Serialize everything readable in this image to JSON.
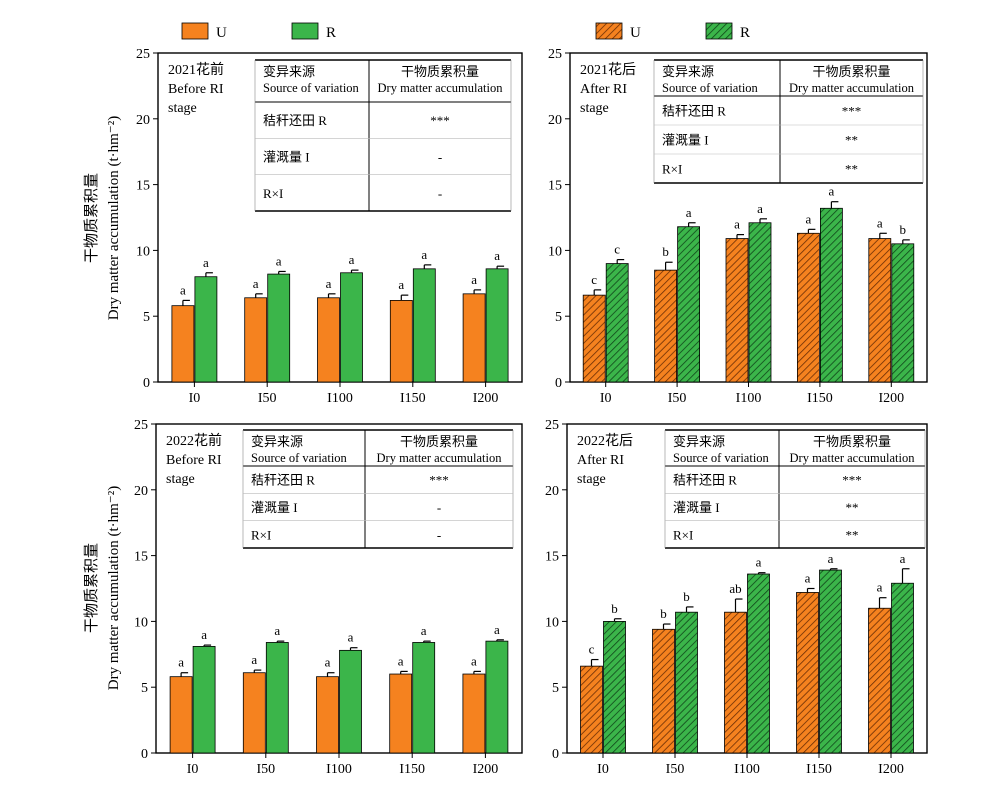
{
  "legends": [
    {
      "items": [
        {
          "label": "U",
          "color": "#F5821F",
          "pattern": "solid"
        },
        {
          "label": "R",
          "color": "#3BB54A",
          "pattern": "solid"
        }
      ]
    },
    {
      "items": [
        {
          "label": "U",
          "color": "#F5821F",
          "pattern": "hatched"
        },
        {
          "label": "R",
          "color": "#3BB54A",
          "pattern": "hatched"
        }
      ]
    }
  ],
  "shared_ylabel": {
    "cn": "干物质累积量",
    "en": "Dry matter accumulation (t·hm⁻²)"
  },
  "chart_data": [
    {
      "type": "bar",
      "stage_label": [
        "2021花前",
        "Before RI",
        "stage"
      ],
      "categories": [
        "I0",
        "I50",
        "I100",
        "I150",
        "I200"
      ],
      "ylim": [
        0,
        25
      ],
      "yticks": [
        0,
        5,
        10,
        15,
        20,
        25
      ],
      "series": [
        {
          "name": "U",
          "values": [
            5.8,
            6.4,
            6.4,
            6.2,
            6.7
          ],
          "errors": [
            0.4,
            0.3,
            0.3,
            0.4,
            0.3
          ],
          "letters": [
            "a",
            "a",
            "a",
            "a",
            "a"
          ]
        },
        {
          "name": "R",
          "values": [
            8.0,
            8.2,
            8.3,
            8.6,
            8.6
          ],
          "errors": [
            0.3,
            0.2,
            0.2,
            0.3,
            0.2
          ],
          "letters": [
            "a",
            "a",
            "a",
            "a",
            "a"
          ]
        }
      ],
      "anova": {
        "header": [
          "变异来源",
          "Source of variation",
          "干物质累积量",
          "Dry matter accumulation"
        ],
        "rows": [
          [
            "秸秆还田 R",
            "***"
          ],
          [
            "灌溉量 I",
            "-"
          ],
          [
            "R×I",
            "-"
          ]
        ]
      }
    },
    {
      "type": "bar",
      "stage_label": [
        "2021花后",
        "After RI",
        "stage"
      ],
      "categories": [
        "I0",
        "I50",
        "I100",
        "I150",
        "I200"
      ],
      "ylim": [
        0,
        25
      ],
      "yticks": [
        0,
        5,
        10,
        15,
        20,
        25
      ],
      "series": [
        {
          "name": "U",
          "values": [
            6.6,
            8.5,
            10.9,
            11.3,
            10.9
          ],
          "errors": [
            0.4,
            0.6,
            0.3,
            0.3,
            0.4
          ],
          "letters": [
            "c",
            "b",
            "a",
            "a",
            "a"
          ]
        },
        {
          "name": "R",
          "values": [
            9.0,
            11.8,
            12.1,
            13.2,
            10.5
          ],
          "errors": [
            0.3,
            0.3,
            0.3,
            0.5,
            0.3
          ],
          "letters": [
            "c",
            "a",
            "a",
            "a",
            "b"
          ]
        }
      ],
      "anova": {
        "header": [
          "变异来源",
          "Source of variation",
          "干物质累积量",
          "Dry matter accumulation"
        ],
        "rows": [
          [
            "秸秆还田 R",
            "***"
          ],
          [
            "灌溉量 I",
            "**"
          ],
          [
            "R×I",
            "**"
          ]
        ]
      }
    },
    {
      "type": "bar",
      "stage_label": [
        "2022花前",
        "Before RI",
        "stage"
      ],
      "categories": [
        "I0",
        "I50",
        "I100",
        "I150",
        "I200"
      ],
      "ylim": [
        0,
        25
      ],
      "yticks": [
        0,
        5,
        10,
        15,
        20,
        25
      ],
      "series": [
        {
          "name": "U",
          "values": [
            5.8,
            6.1,
            5.8,
            6.0,
            6.0
          ],
          "errors": [
            0.3,
            0.2,
            0.3,
            0.2,
            0.2
          ],
          "letters": [
            "a",
            "a",
            "a",
            "a",
            "a"
          ]
        },
        {
          "name": "R",
          "values": [
            8.1,
            8.4,
            7.8,
            8.4,
            8.5
          ],
          "errors": [
            0.1,
            0.1,
            0.2,
            0.1,
            0.1
          ],
          "letters": [
            "a",
            "a",
            "a",
            "a",
            "a"
          ]
        }
      ],
      "anova": {
        "header": [
          "变异来源",
          "Source of variation",
          "干物质累积量",
          "Dry matter accumulation"
        ],
        "rows": [
          [
            "秸秆还田 R",
            "***"
          ],
          [
            "灌溉量 I",
            "-"
          ],
          [
            "R×I",
            "-"
          ]
        ]
      }
    },
    {
      "type": "bar",
      "stage_label": [
        "2022花后",
        "After RI",
        "stage"
      ],
      "categories": [
        "I0",
        "I50",
        "I100",
        "I150",
        "I200"
      ],
      "ylim": [
        0,
        25
      ],
      "yticks": [
        0,
        5,
        10,
        15,
        20,
        25
      ],
      "series": [
        {
          "name": "U",
          "values": [
            6.6,
            9.4,
            10.7,
            12.2,
            11.0
          ],
          "errors": [
            0.5,
            0.4,
            1.0,
            0.3,
            0.8
          ],
          "letters": [
            "c",
            "b",
            "ab",
            "a",
            "a"
          ]
        },
        {
          "name": "R",
          "values": [
            10.0,
            10.7,
            13.6,
            13.9,
            12.9
          ],
          "errors": [
            0.2,
            0.4,
            0.1,
            0.1,
            1.1
          ],
          "letters": [
            "b",
            "b",
            "a",
            "a",
            "a"
          ]
        }
      ],
      "anova": {
        "header": [
          "变异来源",
          "Source of variation",
          "干物质累积量",
          "Dry matter accumulation"
        ],
        "rows": [
          [
            "秸秆还田 R",
            "***"
          ],
          [
            "灌溉量 I",
            "**"
          ],
          [
            "R×I",
            "**"
          ]
        ]
      }
    }
  ]
}
